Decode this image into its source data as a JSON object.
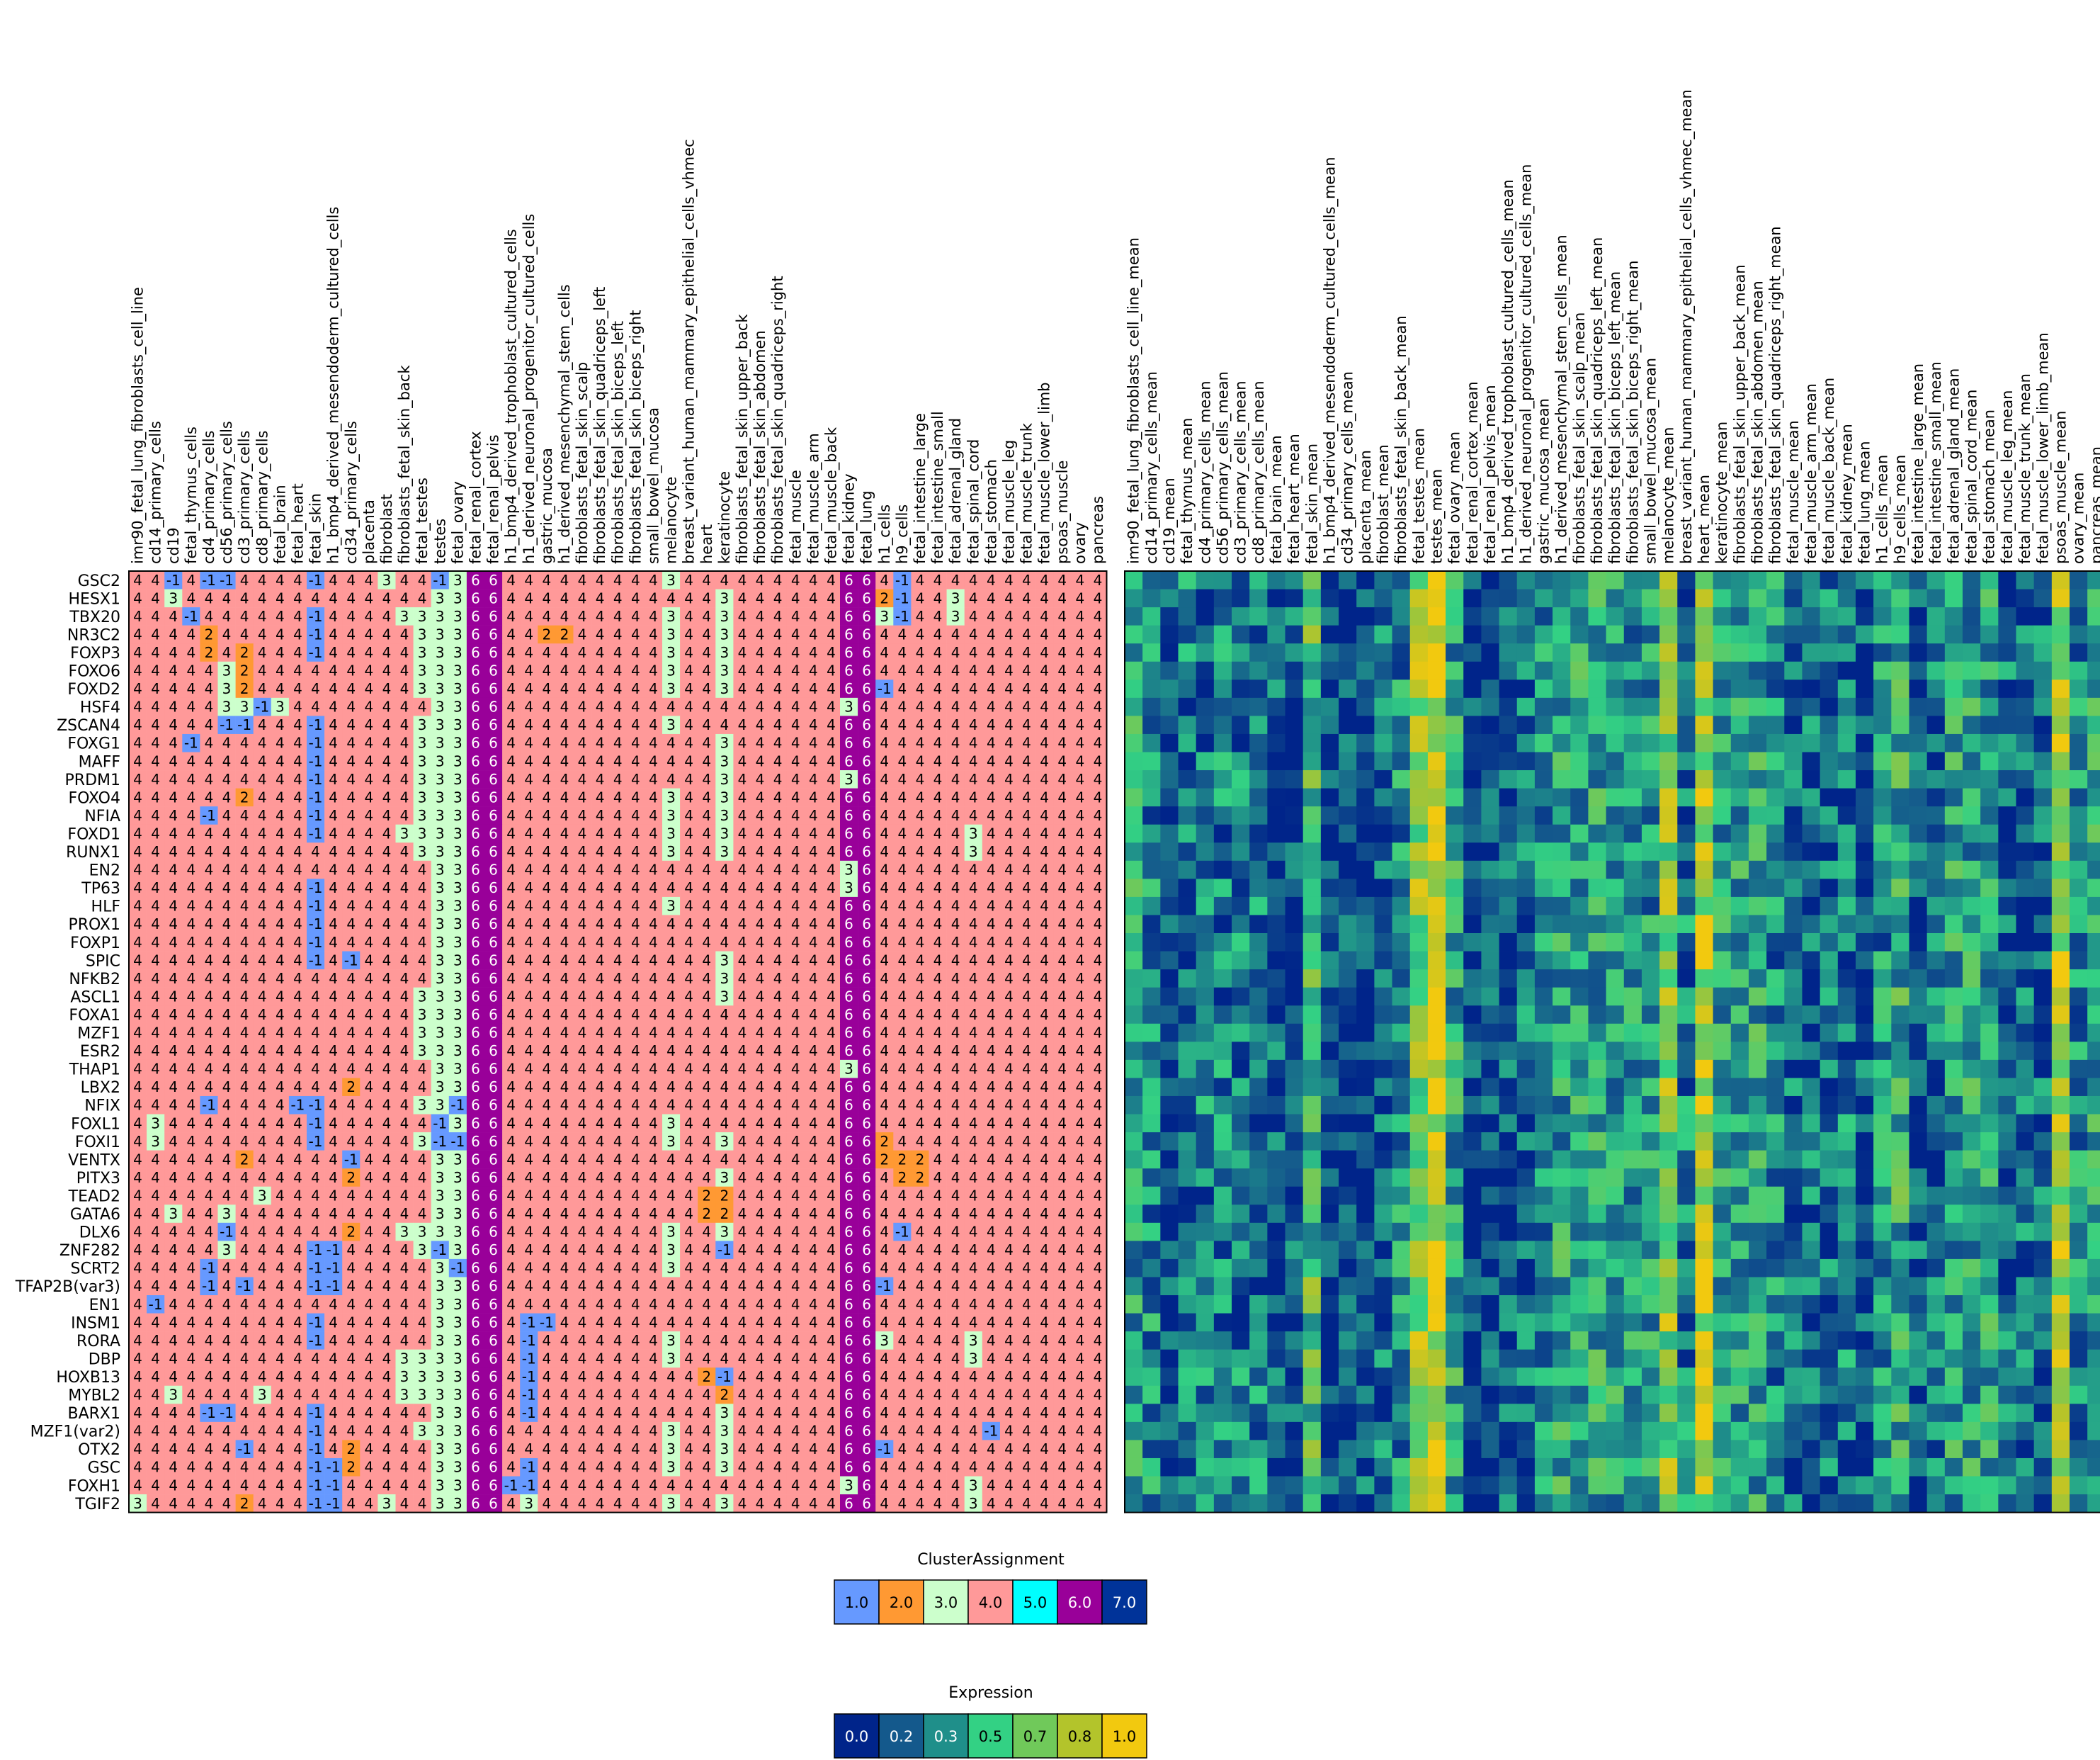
{
  "chart_data": [
    {
      "type": "heatmap",
      "name": "cluster-assignment-heatmap",
      "colorbar_title": "ClusterAssignment",
      "colors": {
        "-1": "#6699ff",
        "2": "#ff9933",
        "3": "#ccffcc",
        "4": "#ff9999",
        "5": "#00ffff",
        "6": "#990099",
        "7": "#003399"
      },
      "legend": [
        {
          "label": "1.0",
          "color": "#6699ff"
        },
        {
          "label": "2.0",
          "color": "#ff9933"
        },
        {
          "label": "3.0",
          "color": "#ccffcc"
        },
        {
          "label": "4.0",
          "color": "#ff9999"
        },
        {
          "label": "5.0",
          "color": "#00ffff"
        },
        {
          "label": "6.0",
          "color": "#990099"
        },
        {
          "label": "7.0",
          "color": "#003399"
        }
      ],
      "columns": [
        "imr90_fetal_lung_fibroblasts_cell_line",
        "cd14_primary_cells",
        "cd19",
        "fetal_thymus_cells",
        "cd4_primary_cells",
        "cd56_primary_cells",
        "cd3_primary_cells",
        "cd8_primary_cells",
        "fetal_brain",
        "fetal_heart",
        "fetal_skin",
        "h1_bmp4_derived_mesendoderm_cultured_cells",
        "cd34_primary_cells",
        "placenta",
        "fibroblast",
        "fibroblasts_fetal_skin_back",
        "fetal_testes",
        "testes",
        "fetal_ovary",
        "fetal_renal_cortex",
        "fetal_renal_pelvis",
        "h1_bmp4_derived_trophoblast_cultured_cells",
        "h1_derived_neuronal_progenitor_cultured_cells",
        "gastric_mucosa",
        "h1_derived_mesenchymal_stem_cells",
        "fibroblasts_fetal_skin_scalp",
        "fibroblasts_fetal_skin_quadriceps_left",
        "fibroblasts_fetal_skin_biceps_left",
        "fibroblasts_fetal_skin_biceps_right",
        "small_bowel_mucosa",
        "melanocyte",
        "breast_variant_human_mammary_epithelial_cells_vhmec",
        "heart",
        "keratinocyte",
        "fibroblasts_fetal_skin_upper_back",
        "fibroblasts_fetal_skin_abdomen",
        "fibroblasts_fetal_skin_quadriceps_right",
        "fetal_muscle",
        "fetal_muscle_arm",
        "fetal_muscle_back",
        "fetal_kidney",
        "fetal_lung",
        "h1_cells",
        "h9_cells",
        "fetal_intestine_large",
        "fetal_intestine_small",
        "fetal_adrenal_gland",
        "fetal_spinal_cord",
        "fetal_stomach",
        "fetal_muscle_leg",
        "fetal_muscle_trunk",
        "fetal_muscle_lower_limb",
        "psoas_muscle",
        "ovary",
        "pancreas"
      ],
      "rows": [
        "GSC2",
        "HESX1",
        "TBX20",
        "NR3C2",
        "FOXP3",
        "FOXO6",
        "FOXD2",
        "HSF4",
        "ZSCAN4",
        "FOXG1",
        "MAFF",
        "PRDM1",
        "FOXO4",
        "NFIA",
        "FOXD1",
        "RUNX1",
        "EN2",
        "TP63",
        "HLF",
        "PROX1",
        "FOXP1",
        "SPIC",
        "NFKB2",
        "ASCL1",
        "FOXA1",
        "MZF1",
        "ESR2",
        "THAP1",
        "LBX2",
        "NFIX",
        "FOXL1",
        "FOXI1",
        "VENTX",
        "PITX3",
        "TEAD2",
        "GATA6",
        "DLX6",
        "ZNF282",
        "SCRT2",
        "TFAP2B(var3)",
        "EN1",
        "INSM1",
        "RORA",
        "DBP",
        "HOXB13",
        "MYBL2",
        "BARX1",
        "MZF1(var2)",
        "OTX2",
        "GSC",
        "FOXH1",
        "TGIF2"
      ],
      "default_value": "4",
      "fixed_columns": {
        "19": "6",
        "20": "6",
        "40": "6",
        "41": "6"
      },
      "column_values_note": "",
      "overrides": {
        "0": {
          "2": "-1",
          "4": "-1",
          "5": "-1",
          "10": "-1",
          "14": "3",
          "17": "-1",
          "18": "3",
          "30": "3",
          "43": "-1"
        },
        "1": {
          "2": "3",
          "17": "3",
          "18": "3",
          "33": "3",
          "42": "2",
          "43": "-1",
          "46": "3"
        },
        "2": {
          "3": "-1",
          "10": "-1",
          "15": "3",
          "16": "3",
          "17": "3",
          "18": "3",
          "30": "3",
          "33": "3",
          "42": "3",
          "43": "-1",
          "46": "3"
        },
        "3": {
          "4": "2",
          "10": "-1",
          "16": "3",
          "17": "3",
          "18": "3",
          "23": "2",
          "24": "2",
          "30": "3",
          "33": "3"
        },
        "4": {
          "4": "2",
          "6": "2",
          "10": "-1",
          "16": "3",
          "17": "3",
          "18": "3",
          "30": "3",
          "33": "3"
        },
        "5": {
          "5": "3",
          "6": "2",
          "16": "3",
          "17": "3",
          "18": "3",
          "30": "3",
          "33": "3"
        },
        "6": {
          "5": "3",
          "6": "2",
          "16": "3",
          "17": "3",
          "18": "3",
          "30": "3",
          "33": "3",
          "42": "-1"
        },
        "7": {
          "5": "3",
          "6": "3",
          "7": "-1",
          "8": "3",
          "17": "3",
          "18": "3",
          "40": "3"
        },
        "8": {
          "5": "-1",
          "6": "-1",
          "10": "-1",
          "16": "3",
          "17": "3",
          "18": "3",
          "30": "3"
        },
        "9": {
          "3": "-1",
          "10": "-1",
          "16": "3",
          "17": "3",
          "18": "3",
          "33": "3"
        },
        "10": {
          "10": "-1",
          "16": "3",
          "17": "3",
          "18": "3",
          "33": "3"
        },
        "11": {
          "10": "-1",
          "16": "3",
          "17": "3",
          "18": "3",
          "33": "3",
          "40": "3"
        },
        "12": {
          "6": "2",
          "10": "-1",
          "16": "3",
          "17": "3",
          "18": "3",
          "30": "3",
          "33": "3"
        },
        "13": {
          "4": "-1",
          "10": "-1",
          "16": "3",
          "17": "3",
          "18": "3",
          "30": "3",
          "33": "3"
        },
        "14": {
          "10": "-1",
          "15": "3",
          "16": "3",
          "17": "3",
          "18": "3",
          "30": "3",
          "33": "3",
          "47": "3"
        },
        "15": {
          "16": "3",
          "17": "3",
          "18": "3",
          "30": "3",
          "33": "3",
          "47": "3"
        },
        "16": {
          "17": "3",
          "18": "3",
          "40": "3"
        },
        "17": {
          "10": "-1",
          "17": "3",
          "18": "3",
          "40": "3"
        },
        "18": {
          "10": "-1",
          "17": "3",
          "18": "3",
          "30": "3"
        },
        "19": {
          "10": "-1",
          "17": "3",
          "18": "3"
        },
        "20": {
          "10": "-1",
          "17": "3",
          "18": "3"
        },
        "21": {
          "10": "-1",
          "12": "-1",
          "17": "3",
          "18": "3",
          "33": "3"
        },
        "22": {
          "17": "3",
          "18": "3",
          "33": "3"
        },
        "23": {
          "16": "3",
          "17": "3",
          "18": "3",
          "33": "3"
        },
        "24": {
          "16": "3",
          "17": "3",
          "18": "3"
        },
        "25": {
          "16": "3",
          "17": "3",
          "18": "3"
        },
        "26": {
          "16": "3",
          "17": "3",
          "18": "3"
        },
        "27": {
          "17": "3",
          "18": "3",
          "40": "3"
        },
        "28": {
          "12": "2",
          "17": "3",
          "18": "3"
        },
        "29": {
          "4": "-1",
          "9": "-1",
          "10": "-1",
          "16": "3",
          "17": "3",
          "18": "-1"
        },
        "30": {
          "1": "3",
          "10": "-1",
          "17": "-1",
          "18": "3",
          "30": "3"
        },
        "31": {
          "1": "3",
          "10": "-1",
          "16": "3",
          "17": "-1",
          "18": "-1",
          "30": "3",
          "33": "3",
          "42": "2"
        },
        "32": {
          "6": "2",
          "12": "-1",
          "17": "3",
          "18": "3",
          "42": "2",
          "43": "2",
          "44": "2"
        },
        "33": {
          "12": "2",
          "17": "3",
          "18": "3",
          "33": "3",
          "42": "4",
          "43": "2",
          "44": "2"
        },
        "34": {
          "7": "3",
          "17": "3",
          "18": "3",
          "32": "2",
          "33": "2"
        },
        "35": {
          "2": "3",
          "5": "3",
          "17": "3",
          "18": "3",
          "32": "2",
          "33": "2"
        },
        "36": {
          "5": "-1",
          "12": "2",
          "15": "3",
          "16": "3",
          "17": "3",
          "18": "3",
          "30": "3",
          "33": "3",
          "43": "-1"
        },
        "37": {
          "5": "3",
          "10": "-1",
          "11": "-1",
          "16": "3",
          "17": "-1",
          "18": "3",
          "30": "3",
          "33": "-1"
        },
        "38": {
          "4": "-1",
          "10": "-1",
          "11": "-1",
          "17": "3",
          "18": "-1",
          "30": "3"
        },
        "39": {
          "4": "-1",
          "6": "-1",
          "10": "-1",
          "11": "-1",
          "17": "3",
          "18": "3",
          "42": "-1"
        },
        "40": {
          "1": "-1",
          "17": "3",
          "18": "3"
        },
        "41": {
          "10": "-1",
          "17": "3",
          "18": "3",
          "22": "-1",
          "23": "-1"
        },
        "42": {
          "10": "-1",
          "17": "3",
          "18": "3",
          "22": "-1",
          "30": "3",
          "42": "3",
          "47": "3"
        },
        "43": {
          "15": "3",
          "16": "3",
          "17": "3",
          "18": "3",
          "22": "-1",
          "30": "3",
          "47": "3"
        },
        "44": {
          "15": "3",
          "16": "3",
          "17": "3",
          "18": "3",
          "22": "-1",
          "32": "2",
          "33": "-1"
        },
        "45": {
          "2": "3",
          "7": "3",
          "15": "3",
          "16": "3",
          "17": "3",
          "18": "3",
          "22": "-1",
          "33": "2"
        },
        "46": {
          "4": "-1",
          "5": "-1",
          "10": "-1",
          "17": "3",
          "18": "3",
          "22": "-1",
          "33": "3"
        },
        "47": {
          "10": "-1",
          "16": "3",
          "17": "3",
          "18": "3",
          "30": "3",
          "33": "3",
          "48": "-1"
        },
        "48": {
          "6": "-1",
          "10": "-1",
          "12": "2",
          "17": "3",
          "18": "3",
          "30": "3",
          "33": "3",
          "42": "-1"
        },
        "49": {
          "10": "-1",
          "11": "-1",
          "12": "2",
          "17": "3",
          "18": "3",
          "22": "-1",
          "30": "3",
          "33": "3"
        },
        "50": {
          "10": "-1",
          "11": "-1",
          "17": "3",
          "18": "3",
          "21": "-1",
          "22": "-1",
          "40": "3",
          "47": "3"
        },
        "51": {
          "0": "3",
          "6": "2",
          "10": "-1",
          "11": "-1",
          "14": "3",
          "17": "3",
          "18": "3",
          "22": "3",
          "30": "3",
          "33": "3",
          "47": "3"
        }
      }
    },
    {
      "type": "heatmap",
      "name": "expression-heatmap",
      "colorbar_title": "Expression",
      "legend": [
        {
          "label": "0.0",
          "color": "#00248a"
        },
        {
          "label": "0.2",
          "color": "#14598c"
        },
        {
          "label": "0.3",
          "color": "#1f8f8a"
        },
        {
          "label": "0.5",
          "color": "#33d184"
        },
        {
          "label": "0.7",
          "color": "#70c95a"
        },
        {
          "label": "0.8",
          "color": "#b3c42b"
        },
        {
          "label": "1.0",
          "color": "#f2c90f"
        }
      ],
      "columns": [
        "imr90_fetal_lung_fibroblasts_cell_line_mean",
        "cd14_primary_cells_mean",
        "cd19_mean",
        "fetal_thymus_mean",
        "cd4_primary_cells_mean",
        "cd56_primary_cells_mean",
        "cd3_primary_cells_mean",
        "cd8_primary_cells_mean",
        "fetal_brain_mean",
        "fetal_heart_mean",
        "fetal_skin_mean",
        "h1_bmp4_derived_mesendoderm_cultured_cells_mean",
        "cd34_primary_cells_mean",
        "placenta_mean",
        "fibroblast_mean",
        "fibroblasts_fetal_skin_back_mean",
        "fetal_testes_mean",
        "testes_mean",
        "fetal_ovary_mean",
        "fetal_renal_cortex_mean",
        "fetal_renal_pelvis_mean",
        "h1_bmp4_derived_trophoblast_cultured_cells_mean",
        "h1_derived_neuronal_progenitor_cultured_cells_mean",
        "gastric_mucosa_mean",
        "h1_derived_mesenchymal_stem_cells_mean",
        "fibroblasts_fetal_skin_scalp_mean",
        "fibroblasts_fetal_skin_quadriceps_left_mean",
        "fibroblasts_fetal_skin_biceps_left_mean",
        "fibroblasts_fetal_skin_biceps_right_mean",
        "small_bowel_mucosa_mean",
        "melanocyte_mean",
        "breast_variant_human_mammary_epithelial_cells_vhmec_mean",
        "heart_mean",
        "keratinocyte_mean",
        "fibroblasts_fetal_skin_upper_back_mean",
        "fibroblasts_fetal_skin_abdomen_mean",
        "fibroblasts_fetal_skin_quadriceps_right_mean",
        "fetal_muscle_mean",
        "fetal_muscle_arm_mean",
        "fetal_muscle_back_mean",
        "fetal_kidney_mean",
        "fetal_lung_mean",
        "h1_cells_mean",
        "h9_cells_mean",
        "fetal_intestine_large_mean",
        "fetal_intestine_small_mean",
        "fetal_adrenal_gland_mean",
        "fetal_spinal_cord_mean",
        "fetal_stomach_mean",
        "fetal_muscle_leg_mean",
        "fetal_muscle_trunk_mean",
        "fetal_muscle_lower_limb_mean",
        "psoas_muscle_mean",
        "ovary_mean",
        "pancreas_mean"
      ],
      "rows_shared_with": "cluster-assignment-heatmap",
      "column_profile": [
        0.4,
        0.3,
        0.1,
        0.25,
        0.25,
        0.25,
        0.25,
        0.25,
        0.15,
        0.15,
        0.55,
        0.1,
        0.1,
        0.15,
        0.2,
        0.3,
        0.7,
        0.9,
        0.4,
        0.1,
        0.1,
        0.15,
        0.2,
        0.3,
        0.4,
        0.4,
        0.4,
        0.4,
        0.35,
        0.35,
        0.7,
        0.25,
        0.8,
        0.4,
        0.4,
        0.4,
        0.3,
        0.2,
        0.2,
        0.2,
        0.25,
        0.15,
        0.3,
        0.45,
        0.15,
        0.2,
        0.4,
        0.4,
        0.4,
        0.2,
        0.2,
        0.2,
        0.8,
        0.3,
        0.4
      ]
    }
  ]
}
